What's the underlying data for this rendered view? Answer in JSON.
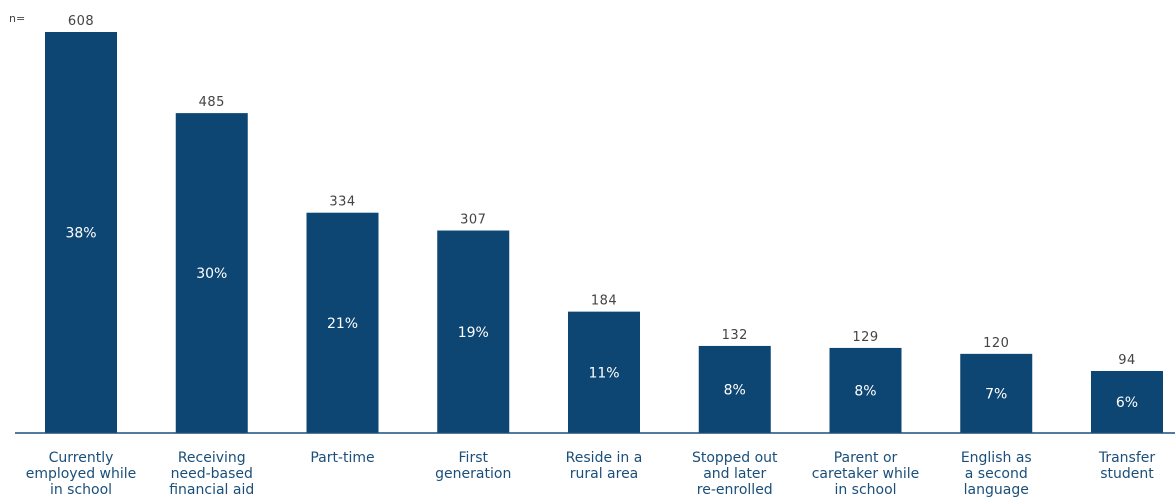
{
  "chart_data": {
    "type": "bar",
    "n_prefix": "n=",
    "categories": [
      [
        "Currently",
        "employed while",
        "in school"
      ],
      [
        "Receiving",
        "need-based",
        "financial aid"
      ],
      [
        "Part-time"
      ],
      [
        "First",
        "generation"
      ],
      [
        "Reside in a",
        "rural area"
      ],
      [
        "Stopped out",
        "and later",
        "re-enrolled"
      ],
      [
        "Parent or",
        "caretaker while",
        "in school"
      ],
      [
        "English as",
        "a second",
        "language"
      ],
      [
        "Transfer",
        "student"
      ]
    ],
    "values": [
      608,
      485,
      334,
      307,
      184,
      132,
      129,
      120,
      94
    ],
    "percent_labels": [
      "38%",
      "30%",
      "21%",
      "19%",
      "11%",
      "8%",
      "8%",
      "7%",
      "6%"
    ],
    "ylim": [
      0,
      608
    ],
    "grid": false,
    "bar_color": "#0d4673",
    "axis_color": "#1b4f7a",
    "category_color": "#1b4f7a"
  }
}
